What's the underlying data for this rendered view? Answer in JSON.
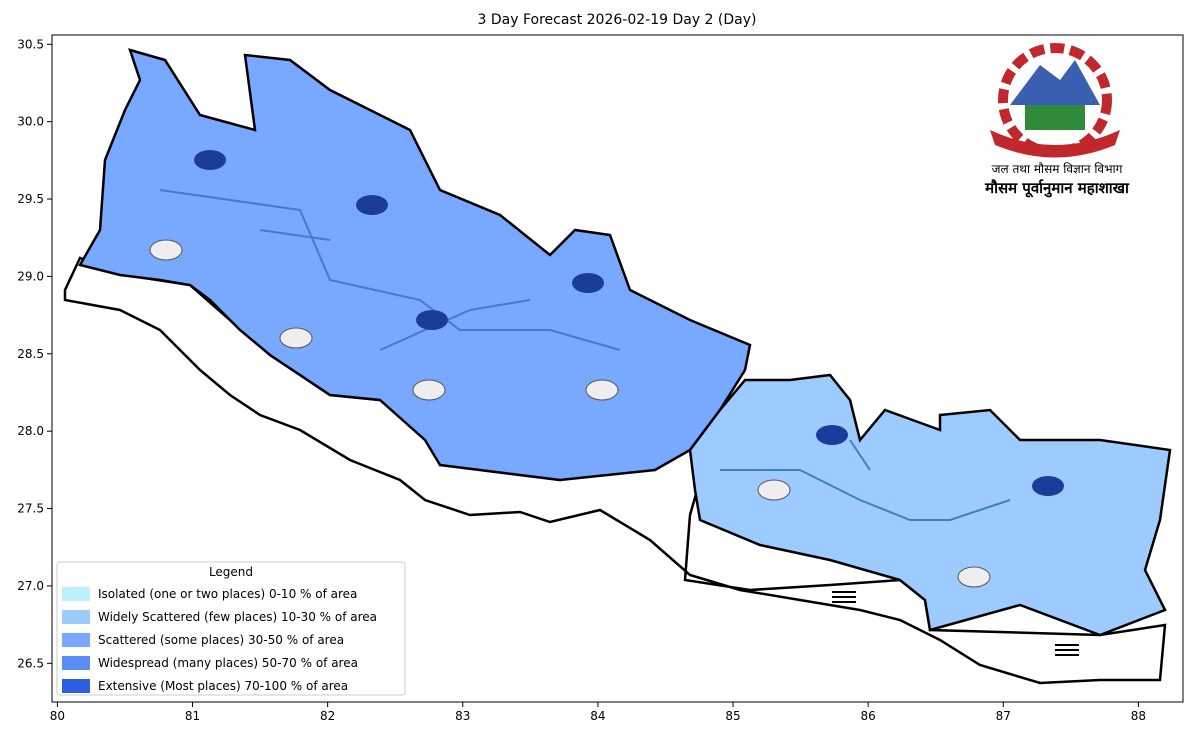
{
  "map": {
    "title": "3 Day Forecast 2026-02-19 Day 2 (Day)",
    "xlim": [
      79.96,
      88.33
    ],
    "ylim": [
      26.25,
      30.56
    ],
    "xticks": [
      80,
      81,
      82,
      83,
      84,
      85,
      86,
      87,
      88
    ],
    "yticks": [
      {
        "value": 26.5,
        "label": "26.5"
      },
      {
        "value": 27.0,
        "label": "27.0"
      },
      {
        "value": 27.5,
        "label": "27.5"
      },
      {
        "value": 28.0,
        "label": "28.0"
      },
      {
        "value": 28.5,
        "label": "28.5"
      },
      {
        "value": 29.0,
        "label": "29.0"
      },
      {
        "value": 29.5,
        "label": "29.5"
      },
      {
        "value": 30.0,
        "label": "30.0"
      },
      {
        "value": 30.5,
        "label": "30.5"
      }
    ]
  },
  "legend": {
    "title": "Legend",
    "items": [
      {
        "label": "Isolated (one or two places)  0-10 % of area",
        "color": "#bff0ff"
      },
      {
        "label": "Widely Scattered (few places)  10-30 % of area",
        "color": "#9ecbff"
      },
      {
        "label": "Scattered (some places)  30-50 % of area",
        "color": "#78a8ff"
      },
      {
        "label": "Widespread (many places)  50-70 % of area",
        "color": "#5b8ef5"
      },
      {
        "label": "Extensive (Most places)  70-100 % of area",
        "color": "#2d5de0"
      }
    ]
  },
  "agency": {
    "line1": "जल तथा मौसम विज्ञान विभाग",
    "line2": "मौसम पूर्वानुमान महाशाखा"
  }
}
